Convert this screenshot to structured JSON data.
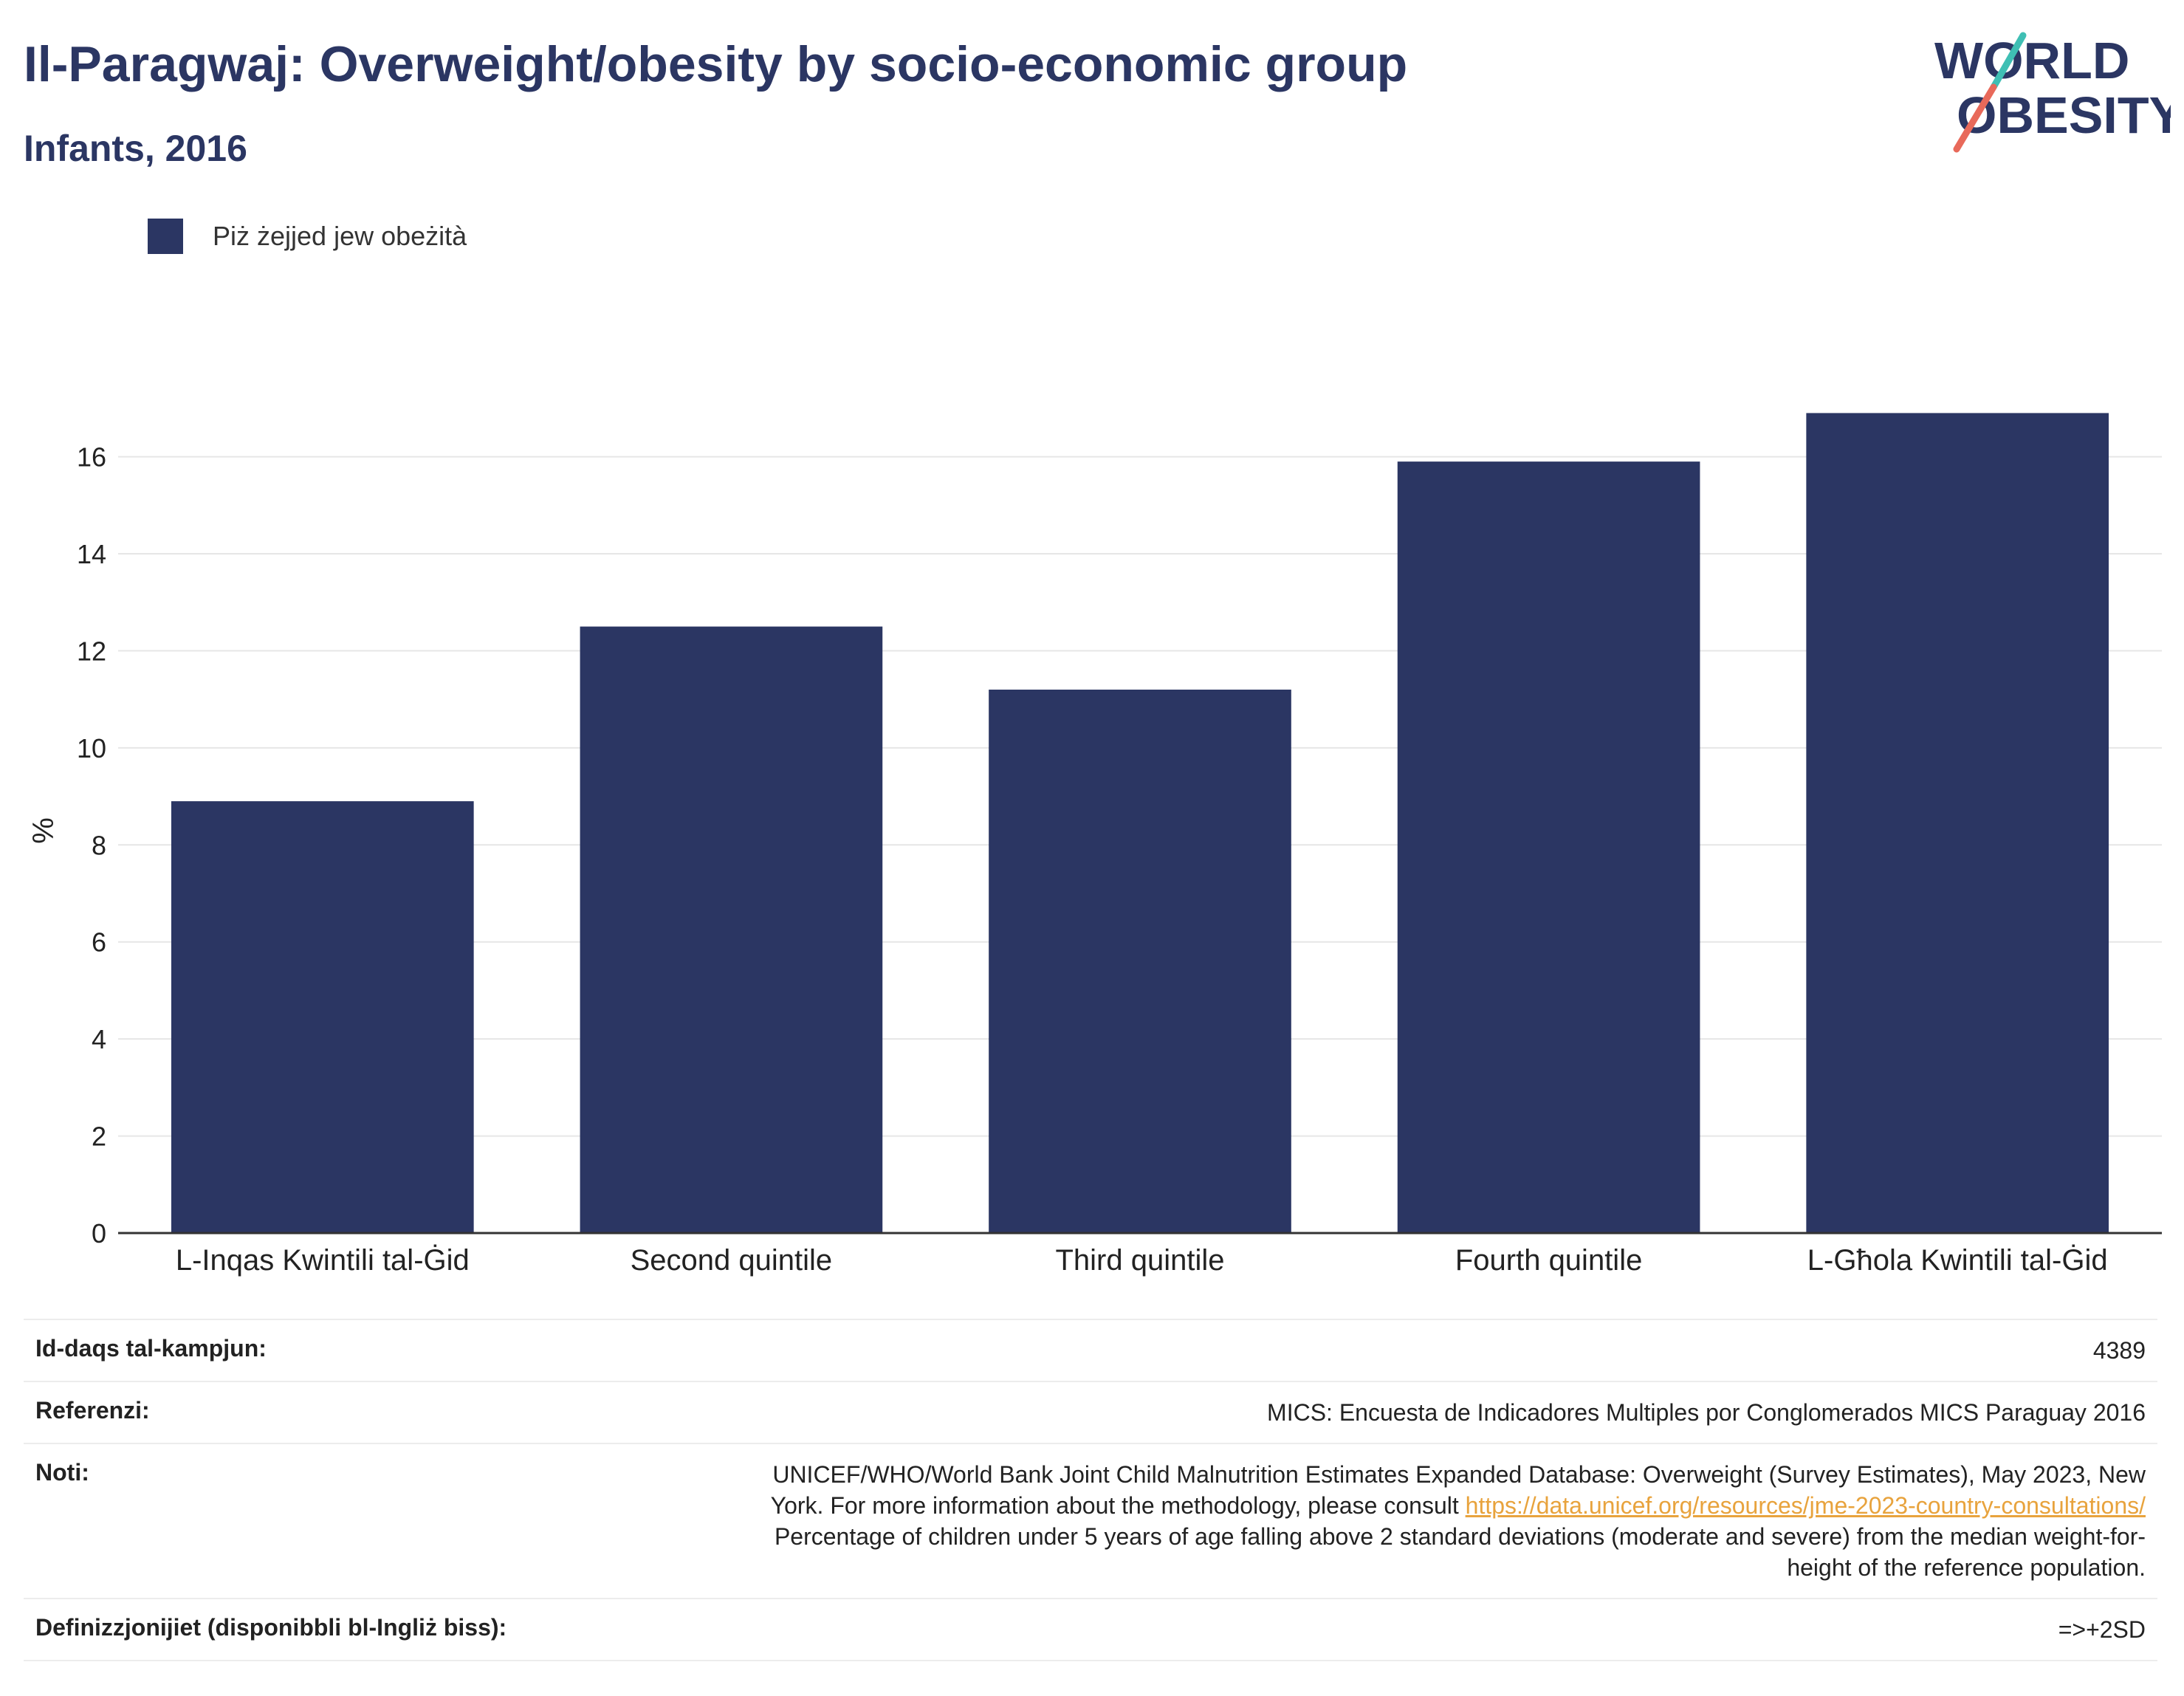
{
  "header": {
    "title": "Il-Paragwaj: Overweight/obesity by socio-economic group",
    "subtitle": "Infants, 2016"
  },
  "logo": {
    "line1": "WORLD",
    "line2": "OBESITY",
    "accent_teal": "#3fbfb4",
    "accent_coral": "#e8695a"
  },
  "chart_data": {
    "type": "bar",
    "title": "Il-Paragwaj: Overweight/obesity by socio-economic group",
    "subtitle": "Infants, 2016",
    "categories": [
      "L-Inqas Kwintili tal-Ġid",
      "Second quintile",
      "Third quintile",
      "Fourth quintile",
      "L-Għola Kwintili tal-Ġid"
    ],
    "series": [
      {
        "name": "Piż żejjed jew obeżità",
        "values": [
          8.9,
          12.5,
          11.2,
          15.9,
          16.9
        ],
        "color": "#2b3663"
      }
    ],
    "xlabel": "",
    "ylabel": "%",
    "ylim": [
      0,
      17.5
    ],
    "yticks": [
      0,
      2,
      4,
      6,
      8,
      10,
      12,
      14,
      16
    ],
    "grid": true,
    "legend": "top-left"
  },
  "info": {
    "sample_label": "Id-daqs tal-kampjun:",
    "sample_value": "4389",
    "ref_label": "Referenzi:",
    "ref_value": "MICS: Encuesta de Indicadores Multiples por Conglomerados MICS Paraguay 2016",
    "notes_label": "Noti:",
    "notes_line1": "UNICEF/WHO/World Bank Joint Child Malnutrition Estimates Expanded Database: Overweight (Survey Estimates), May 2023, New",
    "notes_line2": "York. For more information about the methodology, please consult",
    "notes_link": "https://data.unicef.org/resources/jme-2023-country-consultations/",
    "notes_line3": "Percentage of children under 5 years of age falling above 2 standard deviations (moderate and severe) from the median weight-for-",
    "notes_line4": "height of the reference population.",
    "def_label": "Definizzjonijiet (disponibbli bl-Ingliż biss):",
    "def_value": "=>+2SD"
  }
}
